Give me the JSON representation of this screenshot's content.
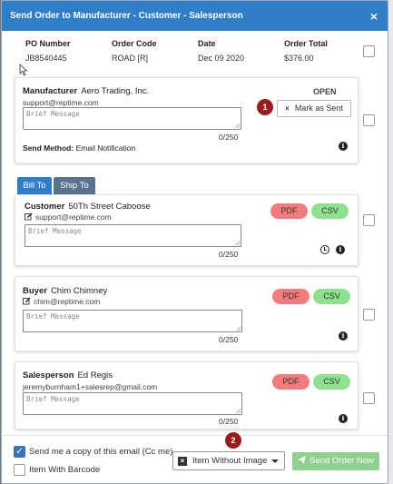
{
  "modal": {
    "title": "Send Order to Manufacturer - Customer - Salesperson",
    "close": "×"
  },
  "summary": {
    "po_label": "PO Number",
    "po_value": "JB8540445",
    "code_label": "Order Code",
    "code_value": "ROAD [R]",
    "date_label": "Date",
    "date_value": "Dec 09 2020",
    "total_label": "Order Total",
    "total_value": "$376.00"
  },
  "manufacturer": {
    "label": "Manufacturer",
    "name": "Aero Trading, Inc.",
    "email": "support@reptime.com",
    "status": "OPEN",
    "badge": "1",
    "mark_sent_x": "×",
    "mark_sent": "Mark as Sent",
    "placeholder": "Brief Message",
    "counter": "0/250",
    "send_method_label": "Send Method:",
    "send_method_value": "Email Notification"
  },
  "tabs": {
    "bill_to": "Bill To",
    "ship_to": "Ship To"
  },
  "customer": {
    "label": "Customer",
    "name": "50Th Street Caboose",
    "email": "support@reptime.com",
    "placeholder": "Brief Message",
    "counter": "0/250",
    "pdf": "PDF",
    "csv": "CSV"
  },
  "buyer": {
    "label": "Buyer",
    "name": "Chim Chimney",
    "email": "chim@reptime.com",
    "placeholder": "Brief Message",
    "counter": "0/250",
    "pdf": "PDF",
    "csv": "CSV"
  },
  "salesperson": {
    "label": "Salesperson",
    "name": "Ed Regis",
    "email": "jeremyburnham1+salesrep@gmail.com",
    "placeholder": "Brief Message",
    "counter": "0/250",
    "pdf": "PDF",
    "csv": "CSV"
  },
  "footer": {
    "cc_label": "Send me a copy of this email (Cc me)",
    "barcode_label": "Item With Barcode",
    "badge": "2",
    "dropdown_x": "×",
    "dropdown_value": "Item Without Image",
    "send_button": "Send Order Now"
  },
  "icons": {
    "close": "close-icon",
    "info": "info-icon",
    "clock": "clock-icon",
    "edit": "edit-icon",
    "plane": "paper-plane-icon",
    "caret": "caret-down-icon"
  }
}
